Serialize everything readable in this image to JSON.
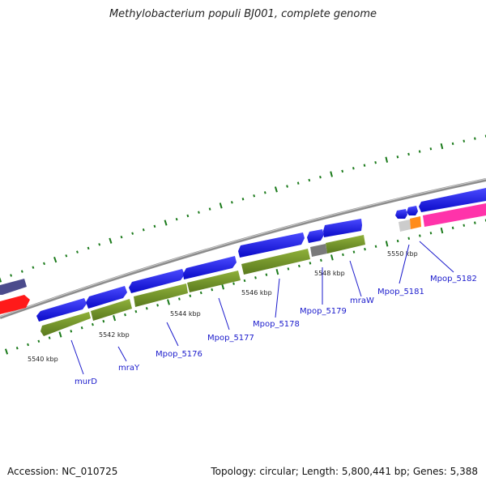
{
  "title": "Methylobacterium populi BJ001, complete genome",
  "footer": {
    "accession": "Accession: NC_010725",
    "summary": "Topology: circular; Length: 5,800,441 bp; Genes: 5,388"
  },
  "colors": {
    "forward_gene": "#1414e6",
    "reverse_gene": "#6b8e23",
    "backbone": "#8c8c8c",
    "tick": "#1a7a1a",
    "label": "#1a1acc",
    "other_purple": "#4b4b8c",
    "other_red": "#ff1a1a",
    "pink_gene": "#ff33aa",
    "orange_gene": "#ff8c1a",
    "grey_gene": "#7a7a7a",
    "light_grey_gene": "#cccccc"
  },
  "scale_labels": [
    "5540 kbp",
    "5542 kbp",
    "5544 kbp",
    "5546 kbp",
    "5548 kbp",
    "5550 kbp"
  ],
  "gene_labels": [
    "murD",
    "mraY",
    "Mpop_5176",
    "Mpop_5177",
    "Mpop_5178",
    "Mpop_5179",
    "mraW",
    "Mpop_5181",
    "Mpop_5182"
  ]
}
